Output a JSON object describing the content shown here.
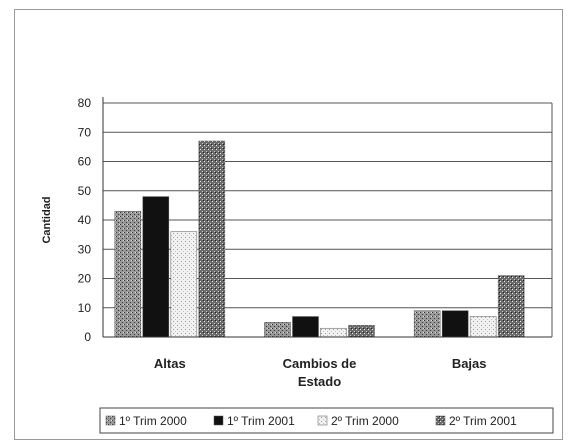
{
  "chart_data": {
    "type": "bar",
    "title": "",
    "xlabel": "",
    "ylabel": "Cantidad",
    "ylim": [
      0,
      80
    ],
    "yticks": [
      0,
      10,
      20,
      30,
      40,
      50,
      60,
      70,
      80
    ],
    "grid": true,
    "legend_position": "bottom",
    "categories": [
      "Altas",
      [
        "Cambios de",
        "Estado"
      ],
      "Bajas"
    ],
    "series": [
      {
        "name": "1º Trim 2000",
        "values": [
          43,
          5,
          9
        ],
        "color": "#8a8a8a"
      },
      {
        "name": "1º Trim 2001",
        "values": [
          48,
          7,
          9
        ],
        "color": "#111111"
      },
      {
        "name": "2º Trim 2000",
        "values": [
          36,
          3,
          7
        ],
        "color": "#e0e0e0"
      },
      {
        "name": "2º Trim 2001",
        "values": [
          67,
          4,
          21
        ],
        "color": "#5a5a5a"
      }
    ]
  }
}
